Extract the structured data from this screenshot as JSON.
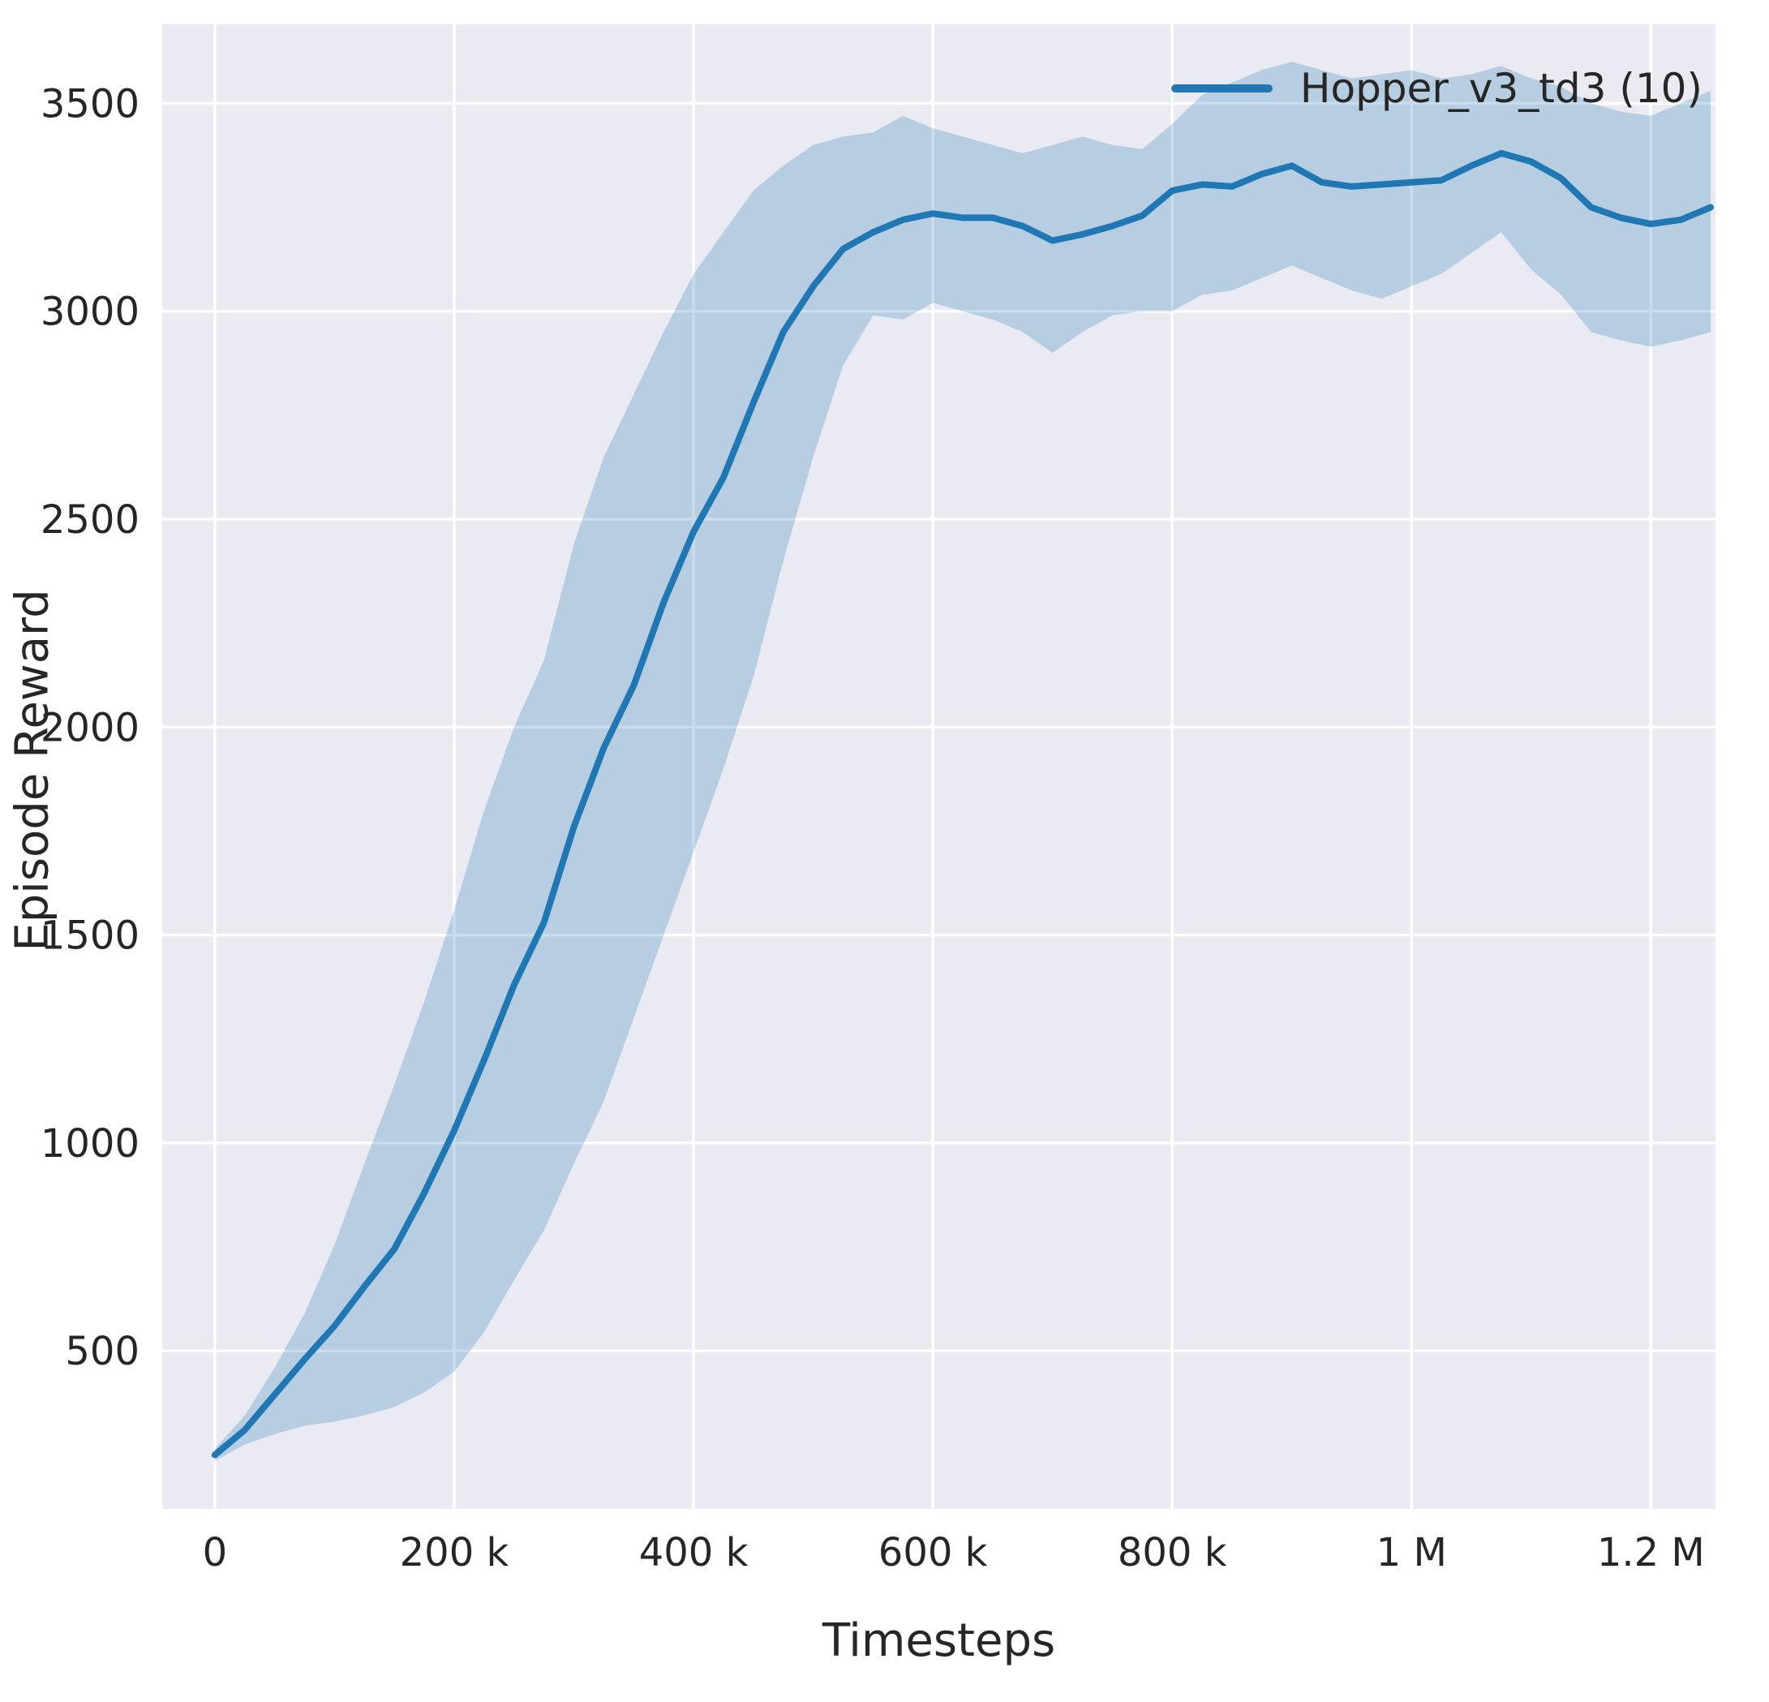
{
  "chart_data": {
    "type": "line",
    "title": "",
    "xlabel": "Timesteps",
    "ylabel": "Episode Reward",
    "xlim": [
      -44000,
      1254000
    ],
    "ylim": [
      120,
      3690
    ],
    "grid": true,
    "legend_position": "upper right",
    "colors": {
      "line": "#1f77b4",
      "band": "#1f77b4",
      "band_opacity": 0.25,
      "plot_bg": "#eaeaf2",
      "grid": "#ffffff",
      "text": "#262626"
    },
    "x_ticks": [
      {
        "value": 0,
        "label": "0"
      },
      {
        "value": 200000,
        "label": "200 k"
      },
      {
        "value": 400000,
        "label": "400 k"
      },
      {
        "value": 600000,
        "label": "600 k"
      },
      {
        "value": 800000,
        "label": "800 k"
      },
      {
        "value": 1000000,
        "label": "1 M"
      },
      {
        "value": 1200000,
        "label": "1.2 M"
      }
    ],
    "y_ticks": [
      {
        "value": 500,
        "label": "500"
      },
      {
        "value": 1000,
        "label": "1000"
      },
      {
        "value": 1500,
        "label": "1500"
      },
      {
        "value": 2000,
        "label": "2000"
      },
      {
        "value": 2500,
        "label": "2500"
      },
      {
        "value": 3000,
        "label": "3000"
      },
      {
        "value": 3500,
        "label": "3500"
      }
    ],
    "x": [
      0,
      25000,
      50000,
      75000,
      100000,
      125000,
      150000,
      175000,
      200000,
      225000,
      250000,
      275000,
      300000,
      325000,
      350000,
      375000,
      400000,
      425000,
      450000,
      475000,
      500000,
      525000,
      550000,
      575000,
      600000,
      625000,
      650000,
      675000,
      700000,
      725000,
      750000,
      775000,
      800000,
      825000,
      850000,
      875000,
      900000,
      925000,
      950000,
      975000,
      1000000,
      1025000,
      1050000,
      1075000,
      1100000,
      1125000,
      1150000,
      1175000,
      1200000,
      1225000,
      1250000
    ],
    "series": [
      {
        "name": "Hopper_v3_td3 (10)",
        "mean": [
          250,
          310,
          395,
          480,
          560,
          655,
          745,
          880,
          1030,
          1200,
          1380,
          1530,
          1760,
          1950,
          2100,
          2300,
          2470,
          2600,
          2780,
          2950,
          3060,
          3150,
          3190,
          3220,
          3235,
          3225,
          3225,
          3205,
          3170,
          3185,
          3205,
          3230,
          3290,
          3305,
          3300,
          3330,
          3350,
          3310,
          3300,
          3305,
          3310,
          3315,
          3350,
          3380,
          3360,
          3320,
          3250,
          3225,
          3210,
          3220,
          3250
        ],
        "band_lower": [
          235,
          275,
          300,
          320,
          330,
          345,
          365,
          400,
          450,
          545,
          670,
          790,
          950,
          1100,
          1300,
          1500,
          1700,
          1900,
          2120,
          2400,
          2650,
          2870,
          2990,
          2980,
          3020,
          3000,
          2980,
          2950,
          2900,
          2950,
          2990,
          3000,
          3000,
          3040,
          3050,
          3080,
          3110,
          3080,
          3050,
          3030,
          3060,
          3090,
          3140,
          3190,
          3100,
          3040,
          2950,
          2930,
          2915,
          2930,
          2950
        ],
        "band_upper": [
          265,
          345,
          460,
          590,
          755,
          950,
          1140,
          1340,
          1560,
          1800,
          2000,
          2160,
          2440,
          2650,
          2800,
          2950,
          3090,
          3190,
          3290,
          3350,
          3400,
          3420,
          3430,
          3470,
          3440,
          3420,
          3400,
          3380,
          3400,
          3420,
          3400,
          3390,
          3450,
          3520,
          3550,
          3580,
          3600,
          3580,
          3560,
          3570,
          3580,
          3560,
          3570,
          3590,
          3560,
          3540,
          3500,
          3480,
          3470,
          3500,
          3530
        ]
      }
    ]
  }
}
